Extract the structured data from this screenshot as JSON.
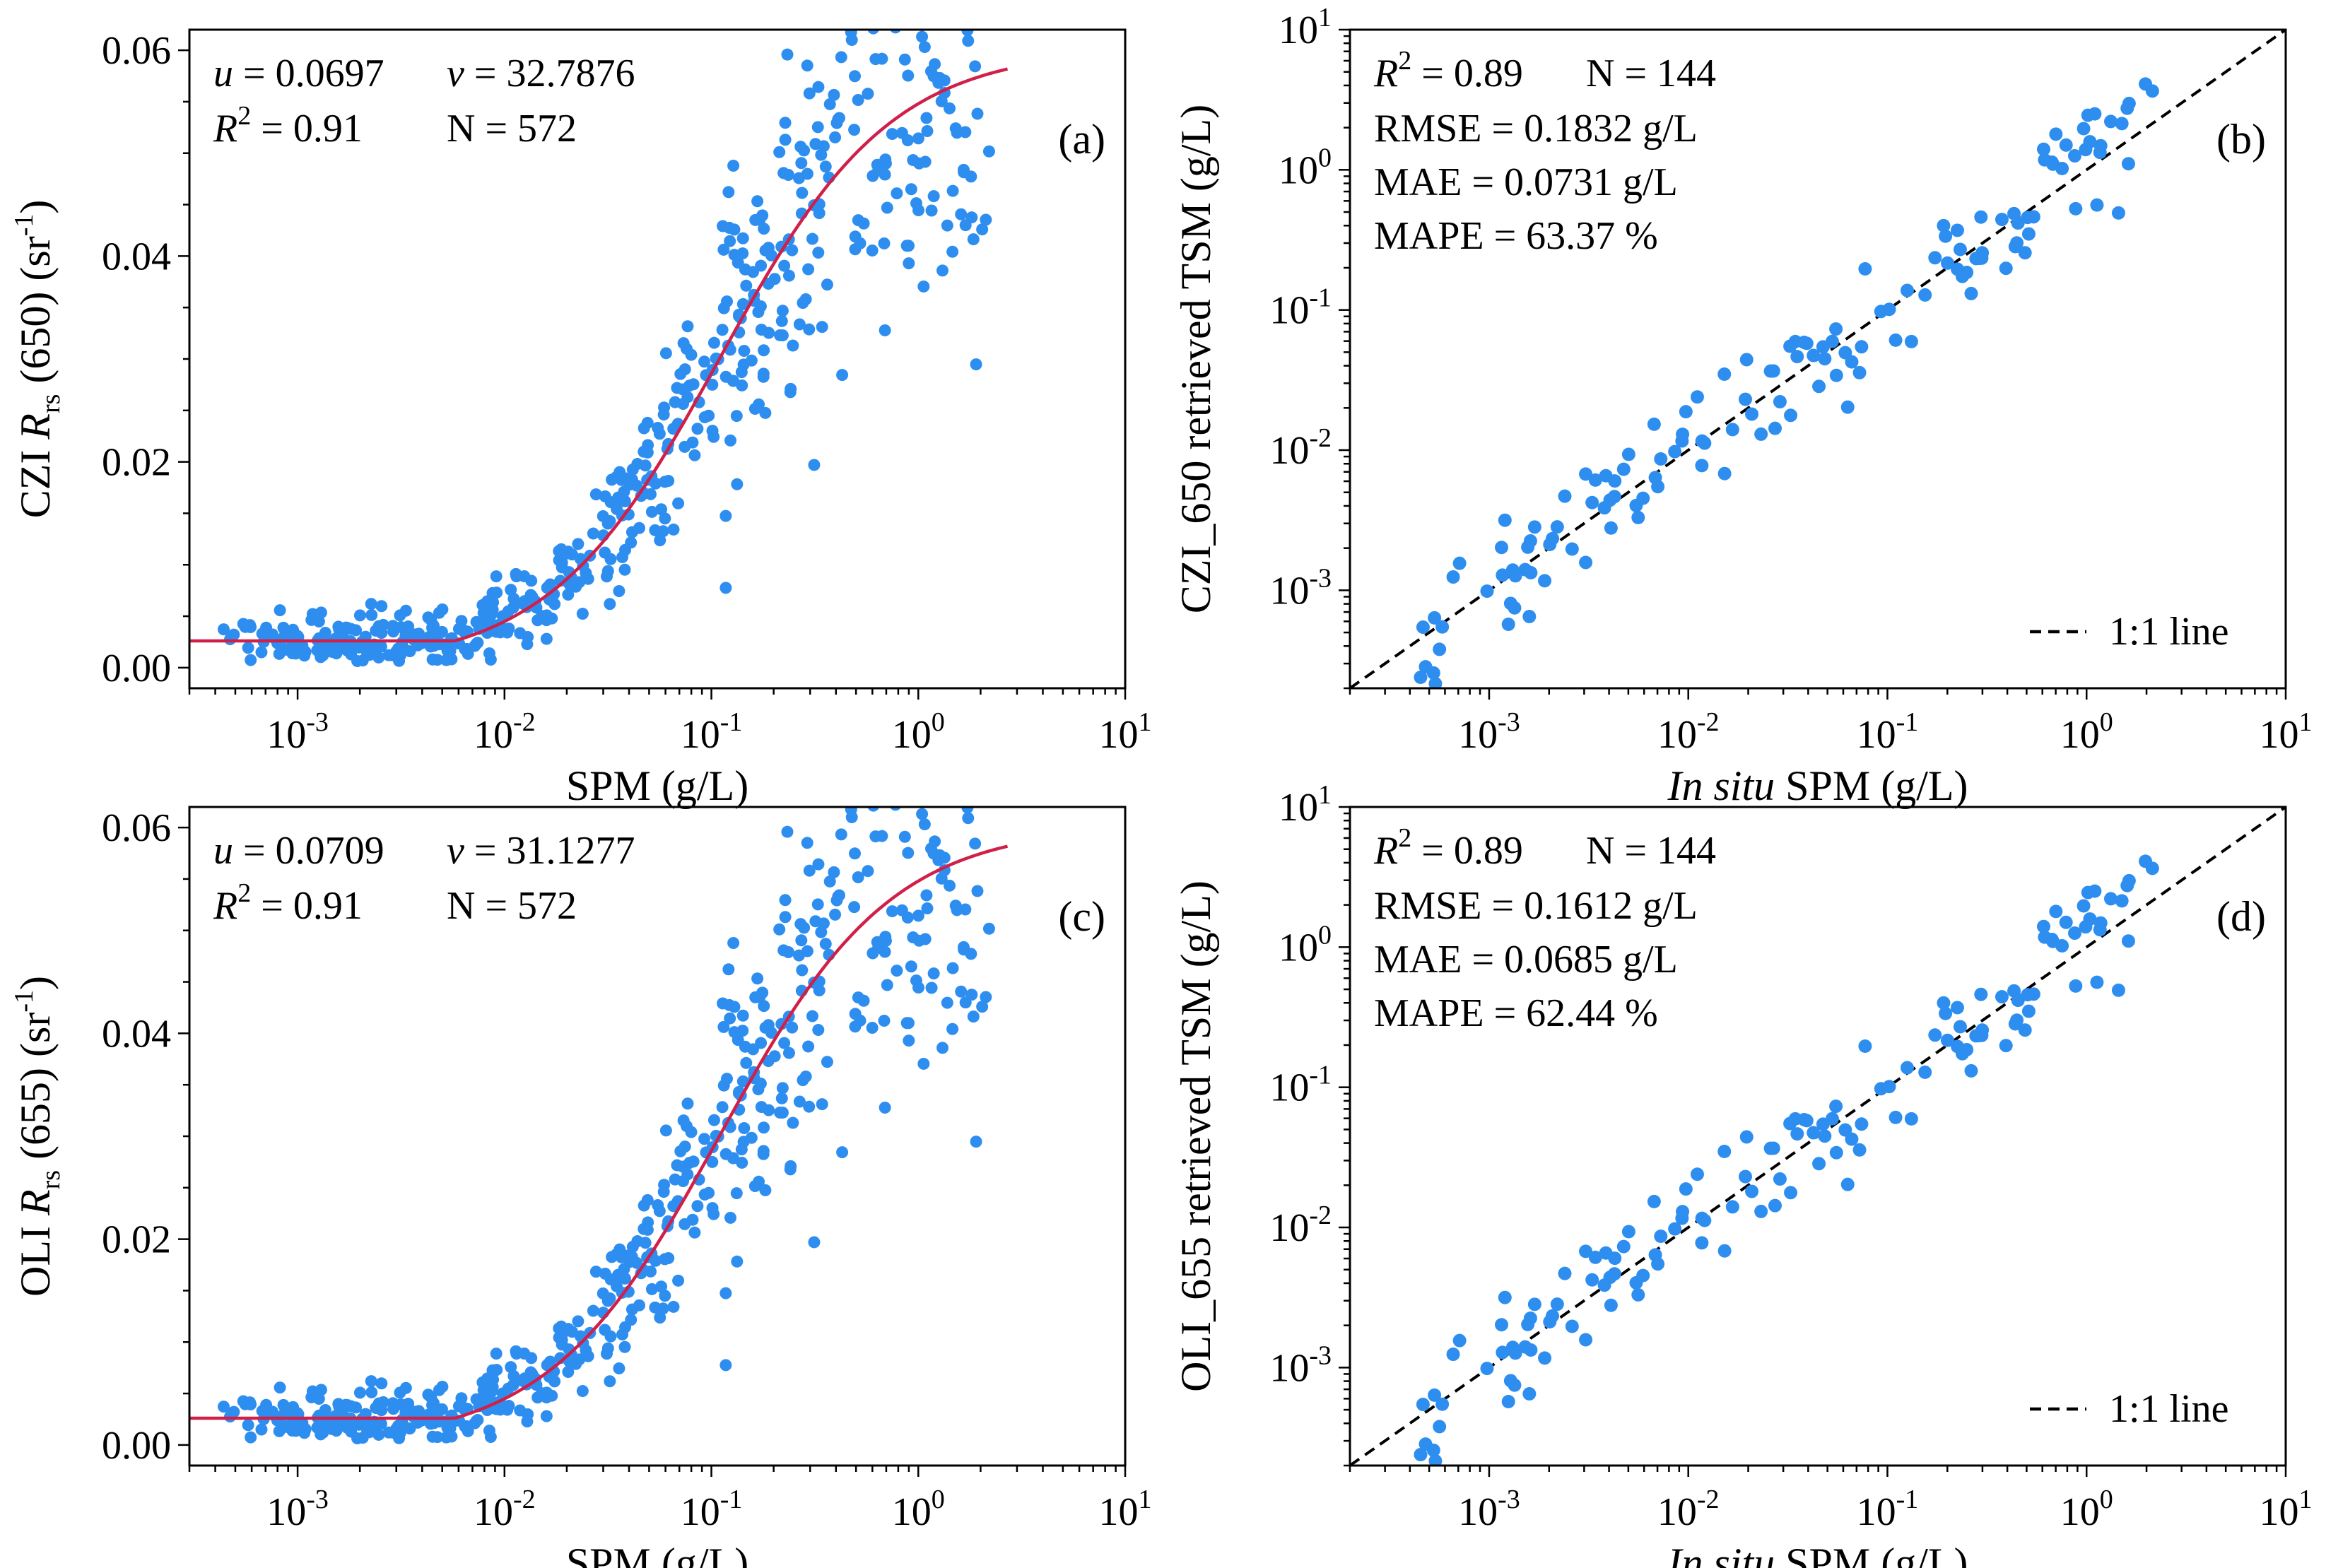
{
  "colors": {
    "point": "#2e8ef0",
    "fit_line": "#d0204a",
    "axis": "#000000",
    "ref_line": "#000000"
  },
  "chart_data": [
    {
      "id": "a",
      "type": "scatter",
      "panel_label": "(a)",
      "xlabel": "SPM (g/L)",
      "ylabel_parts": [
        "CZI  ",
        "R",
        "rs",
        " (650) (sr",
        "-1",
        ")"
      ],
      "xscale": "log",
      "xlim": [
        0.0003,
        10
      ],
      "ylim": [
        -0.002,
        0.062
      ],
      "xticks": [
        {
          "base": "10",
          "exp": "-3"
        },
        {
          "base": "10",
          "exp": "-2"
        },
        {
          "base": "10",
          "exp": "-1"
        },
        {
          "base": "10",
          "exp": "0"
        },
        {
          "base": "10",
          "exp": "1"
        }
      ],
      "yticks": [
        "0.00",
        "0.02",
        "0.04",
        "0.06"
      ],
      "annotations": {
        "u": "0.0697",
        "v": "32.7876",
        "r2": "0.91",
        "n": "572"
      },
      "fit_model": {
        "u": 0.0697,
        "v": 32.7876,
        "floor": 0.0026,
        "x_start": 0.0003,
        "x_end": 2.7
      },
      "n_points": 572,
      "seed": 11
    },
    {
      "id": "b",
      "type": "scatter",
      "panel_label": "(b)",
      "xlabel_italic": "In situ",
      "xlabel_rest": " SPM (g/L)",
      "ylabel": "CZI_650 retrieved TSM (g/L)",
      "xscale": "log",
      "yscale": "log",
      "xlim": [
        0.0002,
        10
      ],
      "ylim": [
        0.0002,
        10
      ],
      "xticks": [
        {
          "base": "10",
          "exp": "-3"
        },
        {
          "base": "10",
          "exp": "-2"
        },
        {
          "base": "10",
          "exp": "-1"
        },
        {
          "base": "10",
          "exp": "0"
        },
        {
          "base": "10",
          "exp": "1"
        }
      ],
      "yticks": [
        {
          "base": "10",
          "exp": "-3"
        },
        {
          "base": "10",
          "exp": "-2"
        },
        {
          "base": "10",
          "exp": "-1"
        },
        {
          "base": "10",
          "exp": "0"
        },
        {
          "base": "10",
          "exp": "1"
        }
      ],
      "stats": {
        "r2": "0.89",
        "n": "144",
        "rmse": "RMSE = 0.1832 g/L",
        "mae": "MAE  =  0.0731 g/L",
        "mape": "MAPE = 63.37 %"
      },
      "legend": "1:1 line",
      "legend_position": "lower-right",
      "n_points": 144,
      "seed": 23
    },
    {
      "id": "c",
      "type": "scatter",
      "panel_label": "(c)",
      "xlabel": "SPM (g/L)",
      "ylabel_parts": [
        "OLI  ",
        "R",
        "rs",
        " (655) (sr",
        "-1",
        ")"
      ],
      "xscale": "log",
      "xlim": [
        0.0003,
        10
      ],
      "ylim": [
        -0.002,
        0.062
      ],
      "xticks": [
        {
          "base": "10",
          "exp": "-3"
        },
        {
          "base": "10",
          "exp": "-2"
        },
        {
          "base": "10",
          "exp": "-1"
        },
        {
          "base": "10",
          "exp": "0"
        },
        {
          "base": "10",
          "exp": "1"
        }
      ],
      "yticks": [
        "0.00",
        "0.02",
        "0.04",
        "0.06"
      ],
      "annotations": {
        "u": "0.0709",
        "v": "31.1277",
        "r2": "0.91",
        "n": "572"
      },
      "fit_model": {
        "u": 0.0709,
        "v": 31.1277,
        "floor": 0.0026,
        "x_start": 0.0003,
        "x_end": 2.7
      },
      "n_points": 572,
      "seed": 11
    },
    {
      "id": "d",
      "type": "scatter",
      "panel_label": "(d)",
      "xlabel_italic": "In situ",
      "xlabel_rest": " SPM (g/L)",
      "ylabel": "OLI_655 retrieved TSM (g/L)",
      "xscale": "log",
      "yscale": "log",
      "xlim": [
        0.0002,
        10
      ],
      "ylim": [
        0.0002,
        10
      ],
      "xticks": [
        {
          "base": "10",
          "exp": "-3"
        },
        {
          "base": "10",
          "exp": "-2"
        },
        {
          "base": "10",
          "exp": "-1"
        },
        {
          "base": "10",
          "exp": "0"
        },
        {
          "base": "10",
          "exp": "1"
        }
      ],
      "yticks": [
        {
          "base": "10",
          "exp": "-3"
        },
        {
          "base": "10",
          "exp": "-2"
        },
        {
          "base": "10",
          "exp": "-1"
        },
        {
          "base": "10",
          "exp": "0"
        },
        {
          "base": "10",
          "exp": "1"
        }
      ],
      "stats": {
        "r2": "0.89",
        "n": "144",
        "rmse": "RMSE = 0.1612 g/L",
        "mae": "MAE  =  0.0685 g/L",
        "mape": "MAPE = 62.44 %"
      },
      "legend": "1:1 line",
      "legend_position": "lower-right",
      "n_points": 144,
      "seed": 23
    }
  ]
}
